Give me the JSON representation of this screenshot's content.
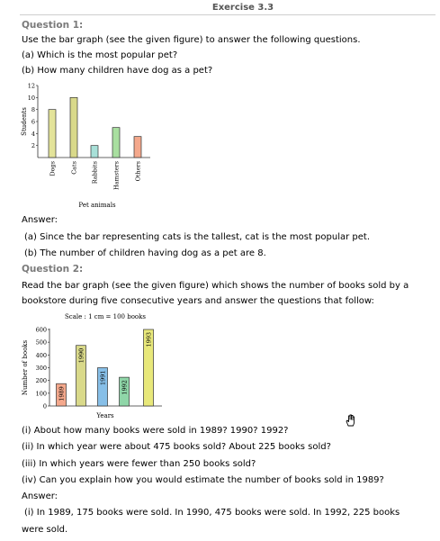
{
  "header": {
    "title": "Exercise 3.3"
  },
  "q1": {
    "title": "Question 1:",
    "intro": "Use the bar graph (see the given figure) to answer the following questions.",
    "qa": "(a) Which is the most popular pet?",
    "qb": "(b) How many children have dog as a pet?",
    "answer_label": "Answer:",
    "ans_a": "(a) Since the bar representing cats is the tallest, cat is the most popular pet.",
    "ans_b": "(b) The number of children having dog as a pet are 8."
  },
  "q2": {
    "title": "Question 2:",
    "intro1": "Read the bar graph (see the given figure) which shows the number of books sold by a",
    "intro2": "bookstore during five consecutive years and answer the questions that follow:",
    "qi": "(i) About how many books were sold in 1989? 1990? 1992?",
    "qii": "(ii) In which year were about 475 books sold? About 225 books sold?",
    "qiii": "(iii) In which years were fewer than 250 books sold?",
    "qiv": "(iv) Can you explain how you would estimate the number of books sold in 1989?",
    "answer_label": "Answer:",
    "ans_i_1": "(i) In 1989, 175 books were sold. In 1990, 475 books were sold. In 1992, 225 books",
    "ans_i_2": "were sold."
  },
  "chart_data": [
    {
      "type": "bar",
      "categories": [
        "Dogs",
        "Cats",
        "Rabbits",
        "Hamsters",
        "Others"
      ],
      "values": [
        8,
        10,
        2,
        5,
        3.5
      ],
      "title": "",
      "xlabel": "Pet animals",
      "ylabel": "Students",
      "ylim": [
        0,
        12
      ],
      "yticks": [
        "2",
        "4",
        "6",
        "8",
        "10",
        "12"
      ],
      "colors": [
        "#e3e39a",
        "#d9d98a",
        "#a8e0d8",
        "#a9dfa0",
        "#f4a88c"
      ]
    },
    {
      "type": "bar",
      "categories": [
        "1989",
        "1990",
        "1991",
        "1992",
        "1993"
      ],
      "values": [
        175,
        475,
        300,
        225,
        600
      ],
      "title": "Scale : 1 cm = 100 books",
      "xlabel": "Years",
      "ylabel": "Number of books",
      "ylim": [
        0,
        600
      ],
      "yticks": [
        "0",
        "100",
        "200",
        "300",
        "400",
        "500",
        "600"
      ],
      "colors": [
        "#f4a88c",
        "#d9d98a",
        "#87bfe8",
        "#8fd6a8",
        "#e8e87a"
      ]
    }
  ]
}
